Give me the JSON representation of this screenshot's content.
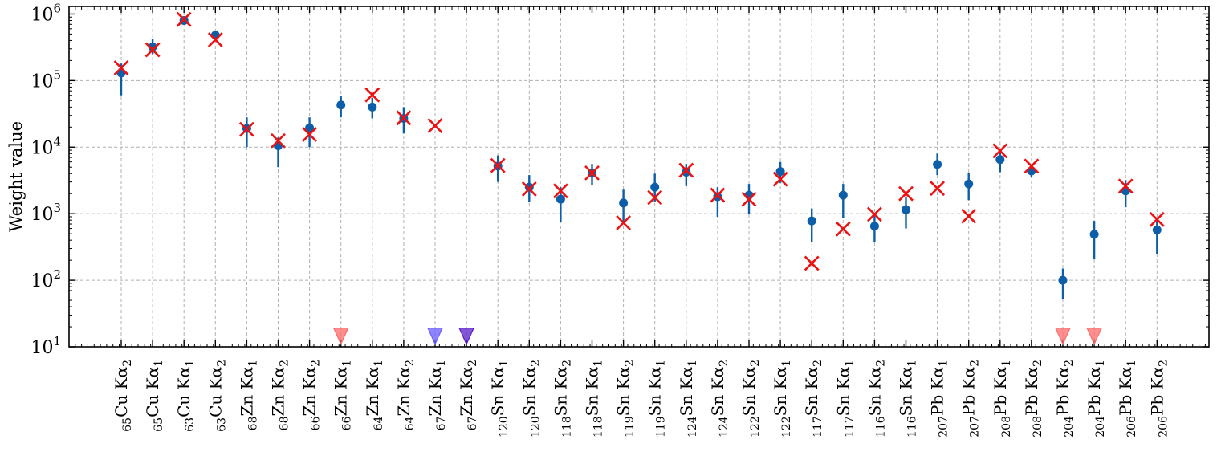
{
  "chart_data": {
    "type": "scatter",
    "ylabel": "Weight value",
    "yscale": "log",
    "ylim": [
      10,
      1300000
    ],
    "grid": true,
    "y_tick_labels": [
      "10",
      "10",
      "10",
      "10",
      "10",
      "10"
    ],
    "y_tick_exponents": [
      "1",
      "2",
      "3",
      "4",
      "5",
      "6"
    ],
    "y_tick_values": [
      10,
      100,
      1000,
      10000,
      100000,
      1000000
    ],
    "categories": [
      {
        "sub": "65",
        "el": "Cu",
        "line": "Kα",
        "n": "2"
      },
      {
        "sub": "65",
        "el": "Cu",
        "line": "Kα",
        "n": "1"
      },
      {
        "sub": "63",
        "el": "Cu",
        "line": "Kα",
        "n": "1"
      },
      {
        "sub": "63",
        "el": "Cu",
        "line": "Kα",
        "n": "2"
      },
      {
        "sub": "68",
        "el": "Zn",
        "line": "Kα",
        "n": "1"
      },
      {
        "sub": "68",
        "el": "Zn",
        "line": "Kα",
        "n": "2"
      },
      {
        "sub": "66",
        "el": "Zn",
        "line": "Kα",
        "n": "2"
      },
      {
        "sub": "66",
        "el": "Zn",
        "line": "Kα",
        "n": "1"
      },
      {
        "sub": "64",
        "el": "Zn",
        "line": "Kα",
        "n": "1"
      },
      {
        "sub": "64",
        "el": "Zn",
        "line": "Kα",
        "n": "2"
      },
      {
        "sub": "67",
        "el": "Zn",
        "line": "Kα",
        "n": "1"
      },
      {
        "sub": "67",
        "el": "Zn",
        "line": "Kα",
        "n": "2"
      },
      {
        "sub": "120",
        "el": "Sn",
        "line": "Kα",
        "n": "1"
      },
      {
        "sub": "120",
        "el": "Sn",
        "line": "Kα",
        "n": "2"
      },
      {
        "sub": "118",
        "el": "Sn",
        "line": "Kα",
        "n": "2"
      },
      {
        "sub": "118",
        "el": "Sn",
        "line": "Kα",
        "n": "1"
      },
      {
        "sub": "119",
        "el": "Sn",
        "line": "Kα",
        "n": "2"
      },
      {
        "sub": "119",
        "el": "Sn",
        "line": "Kα",
        "n": "1"
      },
      {
        "sub": "124",
        "el": "Sn",
        "line": "Kα",
        "n": "1"
      },
      {
        "sub": "124",
        "el": "Sn",
        "line": "Kα",
        "n": "2"
      },
      {
        "sub": "122",
        "el": "Sn",
        "line": "Kα",
        "n": "2"
      },
      {
        "sub": "122",
        "el": "Sn",
        "line": "Kα",
        "n": "1"
      },
      {
        "sub": "117",
        "el": "Sn",
        "line": "Kα",
        "n": "2"
      },
      {
        "sub": "117",
        "el": "Sn",
        "line": "Kα",
        "n": "1"
      },
      {
        "sub": "116",
        "el": "Sn",
        "line": "Kα",
        "n": "2"
      },
      {
        "sub": "116",
        "el": "Sn",
        "line": "Kα",
        "n": "1"
      },
      {
        "sub": "207",
        "el": "Pb",
        "line": "Kα",
        "n": "1"
      },
      {
        "sub": "207",
        "el": "Pb",
        "line": "Kα",
        "n": "2"
      },
      {
        "sub": "208",
        "el": "Pb",
        "line": "Kα",
        "n": "1"
      },
      {
        "sub": "208",
        "el": "Pb",
        "line": "Kα",
        "n": "2"
      },
      {
        "sub": "204",
        "el": "Pb",
        "line": "Kα",
        "n": "2"
      },
      {
        "sub": "204",
        "el": "Pb",
        "line": "Kα",
        "n": "1"
      },
      {
        "sub": "206",
        "el": "Pb",
        "line": "Kα",
        "n": "1"
      },
      {
        "sub": "206",
        "el": "Pb",
        "line": "Kα",
        "n": "2"
      }
    ],
    "series": [
      {
        "marker": "circle-errorbar",
        "color": "#0d5ea8",
        "points": [
          {
            "i": 0,
            "y": 130000,
            "lo": 60000,
            "hi": 180000
          },
          {
            "i": 1,
            "y": 320000,
            "lo": 250000,
            "hi": 420000
          },
          {
            "i": 2,
            "y": 800000,
            "lo": 730000,
            "hi": 900000
          },
          {
            "i": 3,
            "y": 480000,
            "lo": 420000,
            "hi": 550000
          },
          {
            "i": 4,
            "y": 19000,
            "lo": 10000,
            "hi": 28000
          },
          {
            "i": 5,
            "y": 10500,
            "lo": 5000,
            "hi": 14000
          },
          {
            "i": 6,
            "y": 19500,
            "lo": 10000,
            "hi": 28000
          },
          {
            "i": 7,
            "y": 43000,
            "lo": 28000,
            "hi": 58000
          },
          {
            "i": 8,
            "y": 40000,
            "lo": 27000,
            "hi": 55000
          },
          {
            "i": 9,
            "y": 27000,
            "lo": 16000,
            "hi": 40000
          },
          {
            "i": 12,
            "y": 5200,
            "lo": 3000,
            "hi": 7500
          },
          {
            "i": 13,
            "y": 2500,
            "lo": 1500,
            "hi": 3800
          },
          {
            "i": 14,
            "y": 1650,
            "lo": 750,
            "hi": 2500
          },
          {
            "i": 15,
            "y": 4100,
            "lo": 2700,
            "hi": 5600
          },
          {
            "i": 16,
            "y": 1450,
            "lo": 700,
            "hi": 2300
          },
          {
            "i": 17,
            "y": 2500,
            "lo": 1500,
            "hi": 4000
          },
          {
            "i": 18,
            "y": 4200,
            "lo": 2600,
            "hi": 5600
          },
          {
            "i": 19,
            "y": 1800,
            "lo": 900,
            "hi": 2500
          },
          {
            "i": 20,
            "y": 1900,
            "lo": 1000,
            "hi": 2800
          },
          {
            "i": 21,
            "y": 4300,
            "lo": 2900,
            "hi": 6000
          },
          {
            "i": 22,
            "y": 780,
            "lo": 380,
            "hi": 1200
          },
          {
            "i": 23,
            "y": 1900,
            "lo": 850,
            "hi": 2800
          },
          {
            "i": 24,
            "y": 650,
            "lo": 380,
            "hi": 950
          },
          {
            "i": 25,
            "y": 1150,
            "lo": 600,
            "hi": 1800
          },
          {
            "i": 26,
            "y": 5500,
            "lo": 3800,
            "hi": 8000
          },
          {
            "i": 27,
            "y": 2800,
            "lo": 1600,
            "hi": 4100
          },
          {
            "i": 28,
            "y": 6500,
            "lo": 4200,
            "hi": 9000
          },
          {
            "i": 29,
            "y": 4400,
            "lo": 3500,
            "hi": 5200
          },
          {
            "i": 30,
            "y": 100,
            "lo": 52,
            "hi": 150
          },
          {
            "i": 31,
            "y": 490,
            "lo": 210,
            "hi": 780
          },
          {
            "i": 32,
            "y": 2200,
            "lo": 1250,
            "hi": 3200
          },
          {
            "i": 33,
            "y": 570,
            "lo": 250,
            "hi": 880
          }
        ]
      },
      {
        "marker": "x",
        "color": "#ee1111",
        "points": [
          {
            "i": 0,
            "y": 155000
          },
          {
            "i": 1,
            "y": 290000
          },
          {
            "i": 2,
            "y": 830000
          },
          {
            "i": 3,
            "y": 410000
          },
          {
            "i": 4,
            "y": 18500
          },
          {
            "i": 5,
            "y": 12500
          },
          {
            "i": 6,
            "y": 15500
          },
          {
            "i": 8,
            "y": 61000
          },
          {
            "i": 9,
            "y": 27500
          },
          {
            "i": 10,
            "y": 21000
          },
          {
            "i": 12,
            "y": 5300
          },
          {
            "i": 13,
            "y": 2350
          },
          {
            "i": 14,
            "y": 2200
          },
          {
            "i": 15,
            "y": 4100
          },
          {
            "i": 16,
            "y": 730
          },
          {
            "i": 17,
            "y": 1750
          },
          {
            "i": 18,
            "y": 4500
          },
          {
            "i": 19,
            "y": 1900
          },
          {
            "i": 20,
            "y": 1650
          },
          {
            "i": 21,
            "y": 3300
          },
          {
            "i": 22,
            "y": 180
          },
          {
            "i": 23,
            "y": 590
          },
          {
            "i": 24,
            "y": 980
          },
          {
            "i": 25,
            "y": 2000
          },
          {
            "i": 26,
            "y": 2400
          },
          {
            "i": 27,
            "y": 920
          },
          {
            "i": 28,
            "y": 8800
          },
          {
            "i": 29,
            "y": 5200
          },
          {
            "i": 32,
            "y": 2600
          },
          {
            "i": 33,
            "y": 820
          }
        ]
      },
      {
        "marker": "triangle-down",
        "points": [
          {
            "i": 7,
            "y": 14.5,
            "color": "#ff6a6a"
          },
          {
            "i": 10,
            "y": 14.5,
            "color": "#6b5cff"
          },
          {
            "i": 11,
            "y": 14.5,
            "color": "#5a1dc8"
          },
          {
            "i": 30,
            "y": 14.5,
            "color": "#ff6a6a"
          },
          {
            "i": 31,
            "y": 14.5,
            "color": "#ff6a6a"
          }
        ]
      }
    ]
  }
}
